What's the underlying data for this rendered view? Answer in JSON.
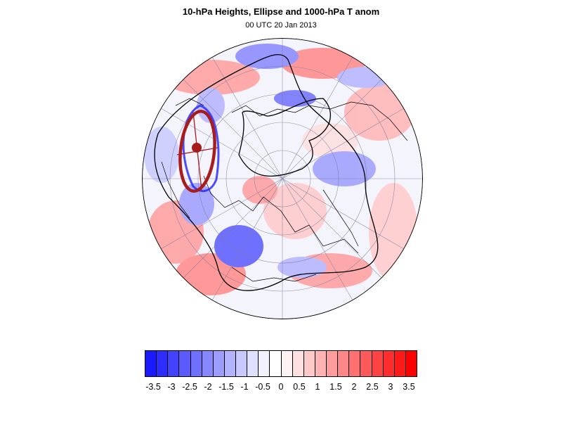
{
  "title": "10-hPa Heights, Ellipse and 1000-hPa T anom",
  "subtitle": "00 UTC 20 Jan 2013",
  "colorbar": {
    "colors": [
      "#1a1aff",
      "#2d2dff",
      "#4343ff",
      "#5a5aff",
      "#7070ff",
      "#8787ff",
      "#9d9dff",
      "#b3b3ff",
      "#c9c9ff",
      "#e0e0ff",
      "#f2f2ff",
      "#ffffff",
      "#fff2f2",
      "#ffe0e0",
      "#ffc9c9",
      "#ffb3b3",
      "#ff9d9d",
      "#ff8787",
      "#ff7070",
      "#ff5a5a",
      "#ff4343",
      "#ff2d2d",
      "#ff1a1a",
      "#ff0000"
    ],
    "labels": [
      "-3.5",
      "-3",
      "-2.5",
      "-2",
      "-1.5",
      "-1",
      "-0.5",
      "0",
      "0.5",
      "1",
      "1.5",
      "2",
      "2.5",
      "3",
      "3.5"
    ]
  },
  "map": {
    "projection": "polar stereographic, Northern Hemisphere",
    "ellipse_color": "#a81c1c"
  }
}
